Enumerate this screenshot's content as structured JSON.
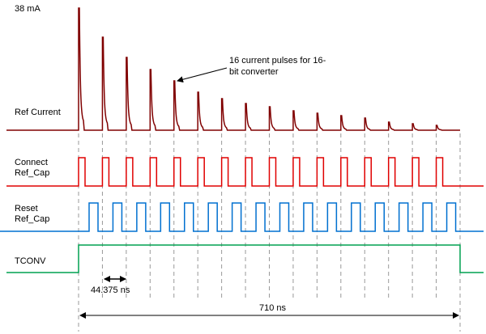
{
  "labels": {
    "peak_current": "38 mA",
    "ref_current": "Ref Current",
    "connect": [
      "Connect",
      "Ref_Cap"
    ],
    "reset": [
      "Reset",
      "Ref_Cap"
    ],
    "tconv": "TCONV",
    "annotation": [
      "16 current pulses for 16-",
      "bit converter"
    ],
    "period": "44.375 ns",
    "total": "710 ns"
  }
}
